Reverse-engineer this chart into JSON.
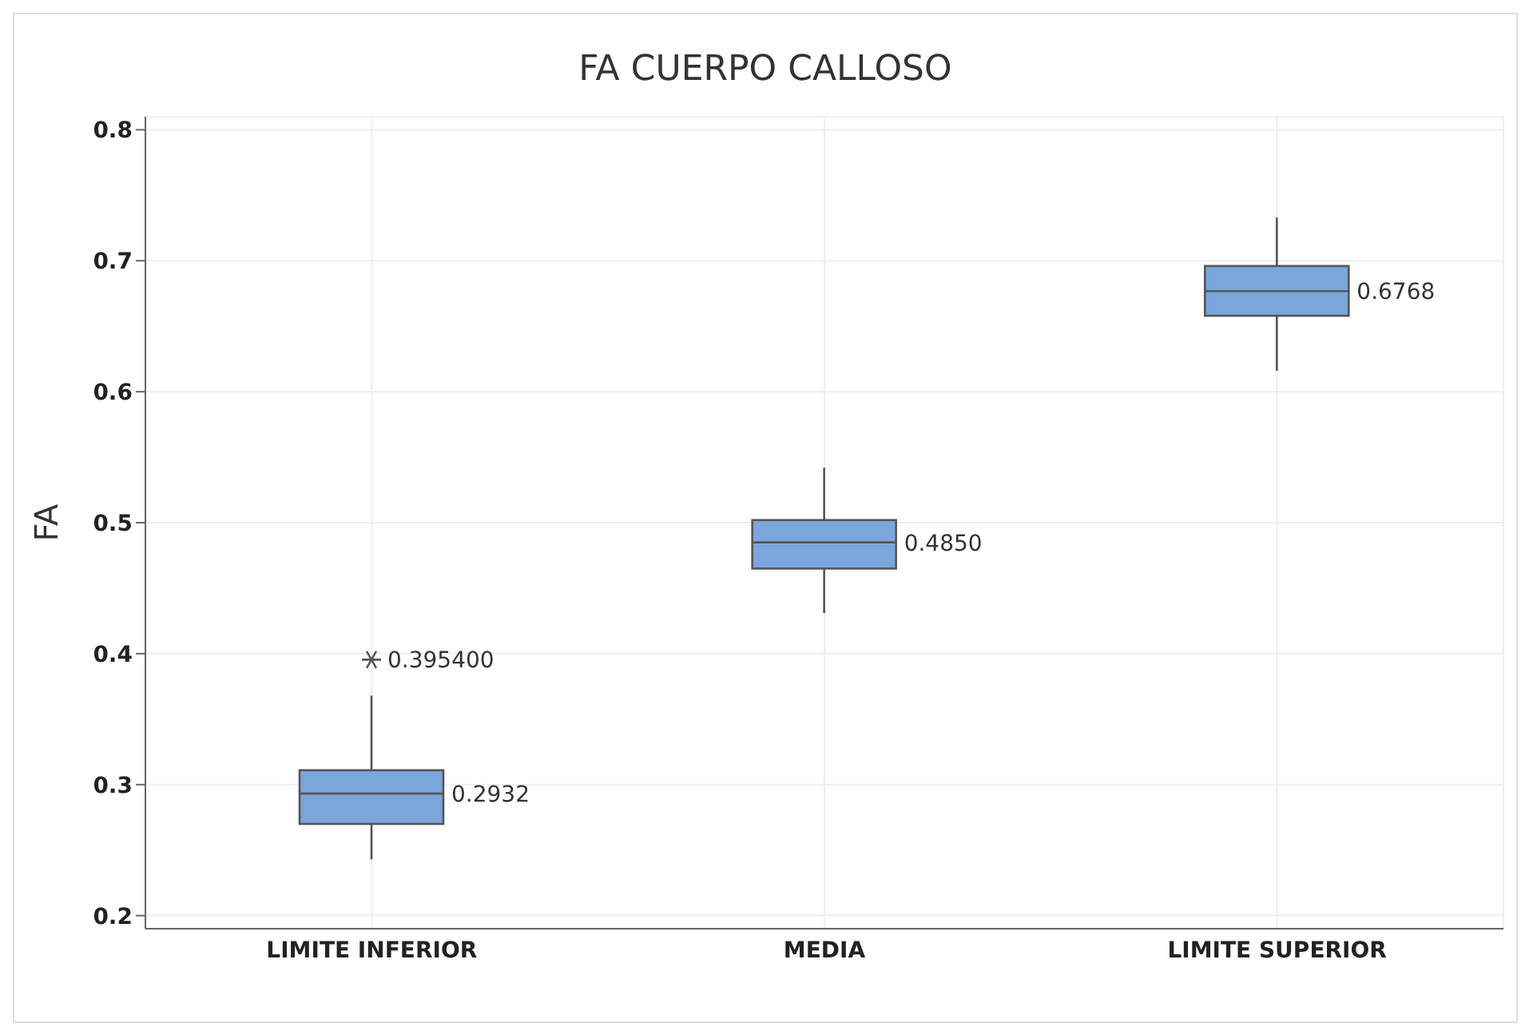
{
  "chart_data": {
    "type": "box",
    "title": "FA CUERPO CALLOSO",
    "ylabel": "FA",
    "categories": [
      "LIMITE INFERIOR",
      "MEDIA",
      "LIMITE SUPERIOR"
    ],
    "series": [
      {
        "color": "#7aa6dc",
        "value_labels": [
          "0.2932",
          "0.4850",
          "0.6768"
        ],
        "boxes": [
          {
            "low": 0.243,
            "q1": 0.27,
            "median": 0.2932,
            "q3": 0.311,
            "high": 0.368,
            "outliers": [
              0.3954
            ]
          },
          {
            "low": 0.431,
            "q1": 0.465,
            "median": 0.485,
            "q3": 0.502,
            "high": 0.542
          },
          {
            "low": 0.616,
            "q1": 0.658,
            "median": 0.6768,
            "q3": 0.696,
            "high": 0.733
          }
        ]
      }
    ],
    "annotations": [
      "0.395400"
    ],
    "ylim": [
      0.19,
      0.81
    ],
    "yticks": [
      0.2,
      0.3,
      0.4,
      0.5,
      0.6,
      0.7,
      0.8
    ],
    "grid": true
  }
}
